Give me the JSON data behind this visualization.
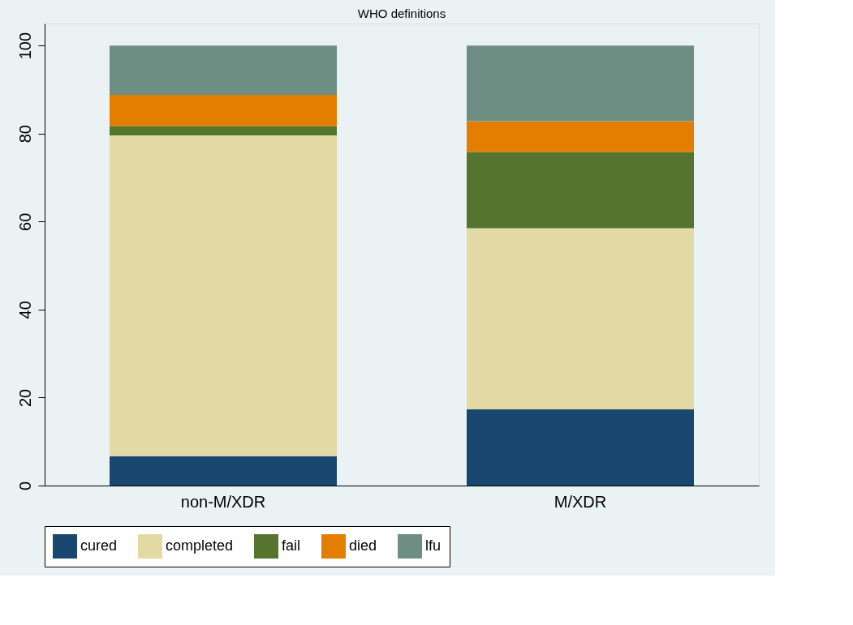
{
  "chart_data": {
    "type": "bar",
    "title": "WHO definitions",
    "stacked": true,
    "categories": [
      "non-M/XDR",
      "M/XDR"
    ],
    "series": [
      {
        "name": "cured",
        "color": "#1a476f",
        "values": [
          6.7,
          17.3
        ]
      },
      {
        "name": "completed",
        "color": "#e3d9a5",
        "values": [
          72.9,
          41.2
        ]
      },
      {
        "name": "fail",
        "color": "#55752f",
        "values": [
          2.1,
          17.3
        ]
      },
      {
        "name": "died",
        "color": "#e37e00",
        "values": [
          7.1,
          7.0
        ]
      },
      {
        "name": "lfu",
        "color": "#6e8e84",
        "values": [
          11.2,
          17.2
        ]
      }
    ],
    "ylim": [
      0,
      105
    ],
    "yticks": [
      0,
      20,
      40,
      60,
      80,
      100
    ],
    "grid": "y",
    "legend": "bottom"
  }
}
